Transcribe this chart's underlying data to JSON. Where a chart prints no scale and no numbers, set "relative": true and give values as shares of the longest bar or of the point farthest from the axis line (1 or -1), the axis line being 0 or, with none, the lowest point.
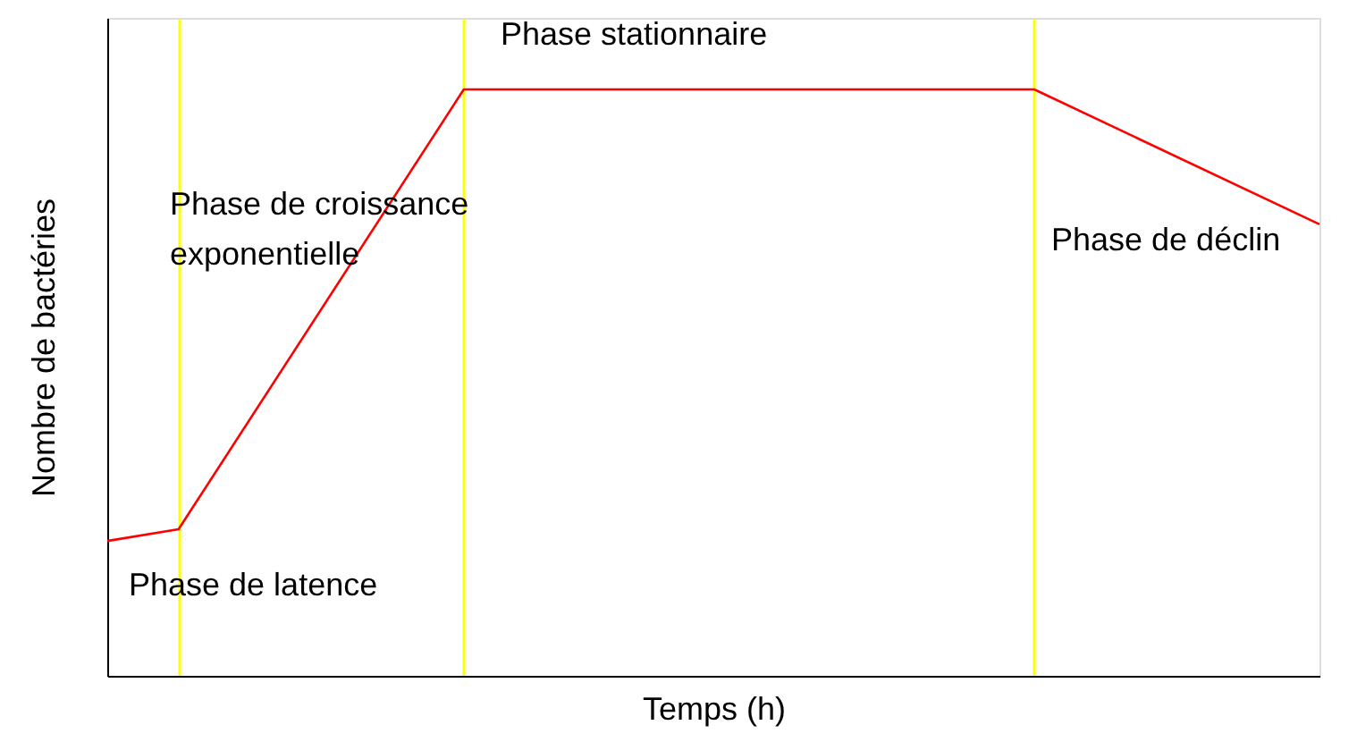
{
  "chart_data": {
    "type": "line",
    "relative": true,
    "xlabel": "Temps (h)",
    "ylabel": "Nombre de bactéries",
    "categories": [
      null,
      null,
      null,
      null,
      null,
      null,
      null,
      null,
      null,
      null,
      null,
      null,
      null,
      null,
      null,
      null,
      null,
      null
    ],
    "series": [
      {
        "color": "#ff0000",
        "values": [
          0.23,
          0.25,
          null,
          null,
          null,
          1,
          null,
          null,
          null,
          null,
          null,
          null,
          null,
          1,
          null,
          null,
          null,
          0.77
        ]
      }
    ],
    "grid": "x",
    "annotations": [
      "Phase de latence",
      "Phase de croissance\nexponentielle",
      "Phase stationnaire",
      "Phase de déclin"
    ]
  }
}
